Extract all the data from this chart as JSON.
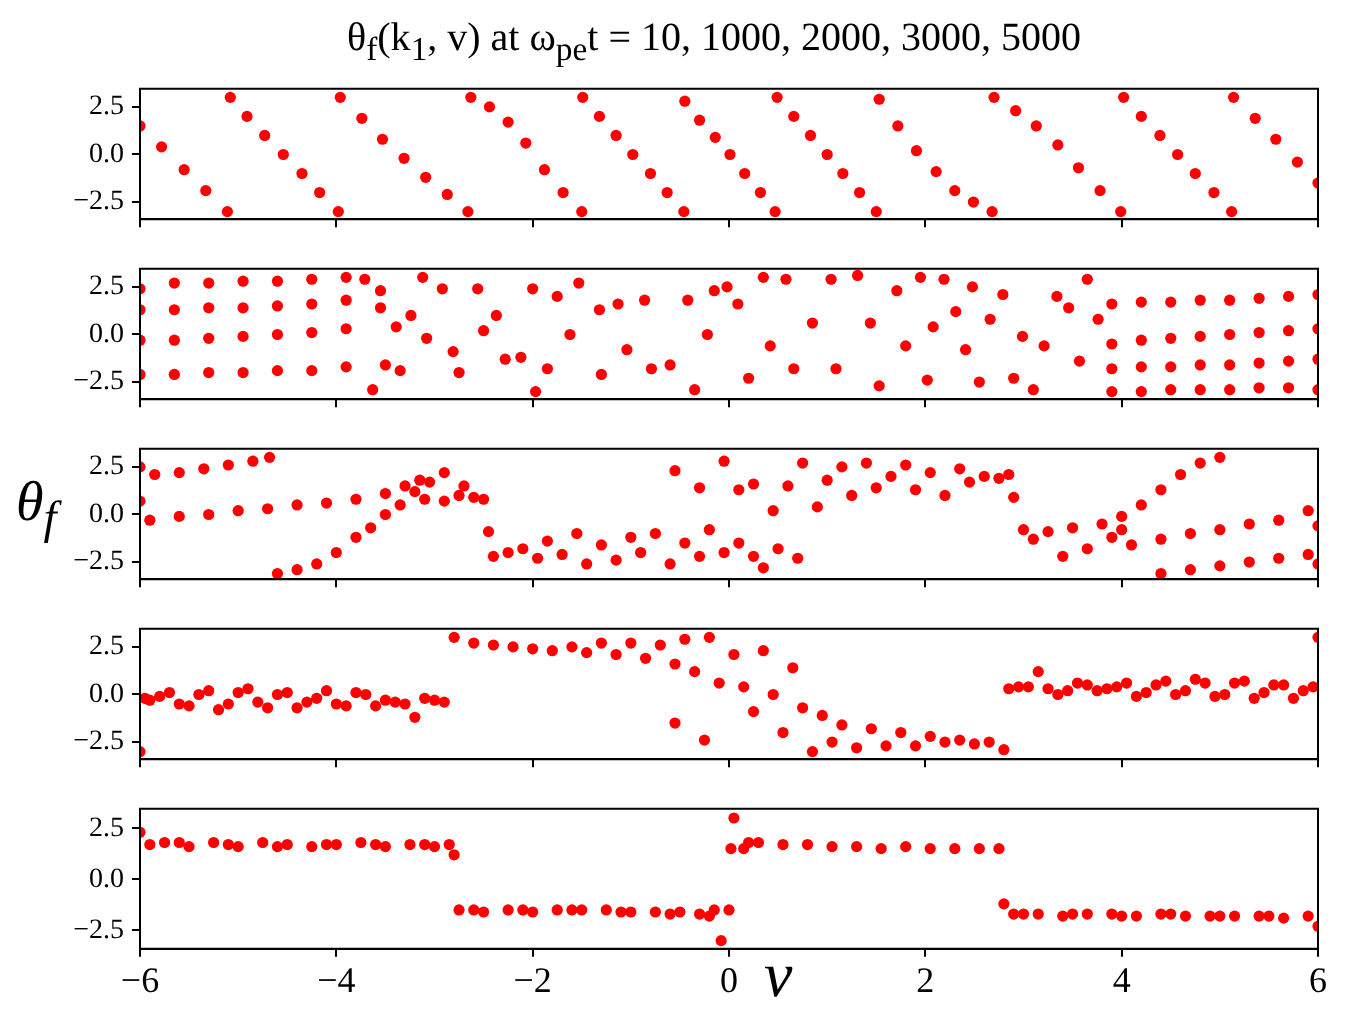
{
  "chart_data": [
    {
      "type": "scatter",
      "title": "θ$_{f}$(k$_{1}$, v) at ω$_{pe}$t = 10, 1000, 2000, 3000, 5000",
      "color": "#ff0000",
      "marker": "circle",
      "tick_labels": "y",
      "xlim": [
        -6,
        6
      ],
      "xticks": [
        {
          "value": -6,
          "label": null
        },
        {
          "value": -4,
          "label": null
        },
        {
          "value": -2,
          "label": null
        },
        {
          "value": 0,
          "label": null
        },
        {
          "value": 2,
          "label": null
        },
        {
          "value": 4,
          "label": null
        },
        {
          "value": 6,
          "label": null
        }
      ],
      "ylim": [
        -3.4,
        3.45
      ],
      "yticks": [
        {
          "value": -2.5,
          "label": "−2.5"
        },
        {
          "value": 0,
          "label": "0.0"
        },
        {
          "value": 2.5,
          "label": "2.5"
        }
      ],
      "x": [
        -6,
        -5.78,
        -5.55,
        -5.33,
        -5.11,
        -5.08,
        -4.91,
        -4.73,
        -4.54,
        -4.35,
        -4.17,
        -3.98,
        -3.96,
        -3.74,
        -3.53,
        -3.31,
        -3.09,
        -2.87,
        -2.66,
        -2.63,
        -2.44,
        -2.25,
        -2.07,
        -1.88,
        -1.69,
        -1.5,
        -1.49,
        -1.32,
        -1.15,
        -0.98,
        -0.8,
        -0.63,
        -0.46,
        -0.45,
        -0.3,
        -0.14,
        0.01,
        0.16,
        0.32,
        0.47,
        0.49,
        0.66,
        0.83,
        1,
        1.16,
        1.33,
        1.5,
        1.53,
        1.72,
        1.91,
        2.11,
        2.3,
        2.49,
        2.68,
        2.7,
        2.92,
        3.13,
        3.35,
        3.56,
        3.78,
        3.99,
        4.02,
        4.2,
        4.39,
        4.57,
        4.75,
        4.94,
        5.12,
        5.14,
        5.36,
        5.57,
        5.79,
        6
      ],
      "values": [
        1.5,
        0.4,
        -0.8,
        -1.9,
        -3,
        3,
        2,
        1,
        0,
        -1,
        -2,
        -3,
        3,
        1.9,
        0.8,
        -0.2,
        -1.2,
        -2.1,
        -3,
        3,
        2.5,
        1.7,
        0.6,
        -0.8,
        -2,
        -3,
        3,
        2,
        1,
        0,
        -1,
        -2,
        -3,
        2.8,
        1.8,
        0.9,
        0,
        -1,
        -2,
        -3,
        3,
        2,
        1,
        0,
        -1,
        -2,
        -3,
        2.9,
        1.5,
        0.2,
        -0.9,
        -1.9,
        -2.5,
        -3,
        3,
        2.3,
        1.5,
        0.5,
        -0.7,
        -1.9,
        -3,
        3,
        2,
        1,
        0,
        -1,
        -2,
        -3,
        3,
        1.9,
        0.8,
        -0.4,
        -1.5
      ]
    },
    {
      "type": "scatter",
      "color": "#ff0000",
      "marker": "circle",
      "tick_labels": "y",
      "xlim": [
        -6,
        6
      ],
      "xticks": [
        {
          "value": -6,
          "label": null
        },
        {
          "value": -4,
          "label": null
        },
        {
          "value": -2,
          "label": null
        },
        {
          "value": 0,
          "label": null
        },
        {
          "value": 2,
          "label": null
        },
        {
          "value": 4,
          "label": null
        },
        {
          "value": 6,
          "label": null
        }
      ],
      "ylim": [
        -3.4,
        3.45
      ],
      "yticks": [
        {
          "value": -2.5,
          "label": "−2.5"
        },
        {
          "value": 0,
          "label": "0.0"
        },
        {
          "value": 2.5,
          "label": "2.5"
        }
      ],
      "x": [
        -6,
        -5.65,
        -5.3,
        -4.95,
        -4.6,
        -4.25,
        -3.9,
        -6,
        -5.65,
        -5.3,
        -4.95,
        -4.6,
        -4.25,
        -3.9,
        -6,
        -5.65,
        -5.3,
        -4.95,
        -4.6,
        -4.25,
        -3.9,
        -6,
        -5.65,
        -5.3,
        -4.95,
        -4.6,
        -4.25,
        -3.9,
        -3.71,
        -3.55,
        -3.55,
        -3.39,
        -3.24,
        -3.12,
        -3.08,
        -2.92,
        -2.81,
        -2.75,
        -2.56,
        -2.5,
        -2.37,
        -2.28,
        -2.12,
        -2,
        -1.97,
        -1.85,
        -1.75,
        -1.62,
        -1.53,
        -1.32,
        -1.3,
        -1.13,
        -1.04,
        -0.86,
        -0.79,
        -0.6,
        -0.42,
        -0.35,
        -0.22,
        -0.15,
        -0.02,
        0.09,
        0.2,
        0.35,
        0.42,
        0.58,
        0.66,
        0.85,
        1.04,
        1.09,
        1.31,
        1.44,
        1.53,
        1.71,
        1.8,
        1.95,
        2.02,
        2.08,
        2.19,
        2.31,
        2.41,
        2.48,
        2.55,
        2.66,
        2.79,
        2.9,
        2.99,
        3.1,
        3.21,
        3.34,
        3.46,
        3.57,
        3.65,
        3.76,
        -3.63,
        -3.5,
        -3.35,
        3.9,
        4.2,
        4.5,
        4.8,
        5.1,
        5.4,
        5.7,
        6,
        3.9,
        4.2,
        4.5,
        4.8,
        5.1,
        5.4,
        5.7,
        6,
        3.9,
        4.2,
        4.5,
        4.8,
        5.1,
        5.4,
        5.7,
        6,
        3.9,
        4.2,
        4.5,
        4.8,
        5.1,
        5.4,
        5.7,
        6
      ],
      "values": [
        2.4,
        2.7,
        2.7,
        2.8,
        2.8,
        2.9,
        3,
        1.3,
        1.3,
        1.4,
        1.4,
        1.5,
        1.6,
        1.8,
        -0.3,
        -0.3,
        -0.2,
        -0.1,
        0,
        0.1,
        0.3,
        -2.1,
        -2.1,
        -2,
        -2,
        -1.9,
        -1.9,
        -1.7,
        2.9,
        2.3,
        1.4,
        0.4,
        1,
        3,
        -0.2,
        2.4,
        -0.9,
        -2,
        2.4,
        0.2,
        1,
        -1.3,
        -1.2,
        2.4,
        -3,
        -1.8,
        2,
        0,
        2.7,
        1.3,
        -2.1,
        1.6,
        -0.8,
        1.8,
        -1.8,
        -1.6,
        1.8,
        -2.9,
        0,
        2.3,
        2.5,
        1.6,
        -2.3,
        3,
        -0.6,
        2.9,
        -1.8,
        0.6,
        2.9,
        -1.8,
        3.1,
        0.6,
        -2.7,
        2.3,
        -0.6,
        3,
        -2.4,
        0.4,
        2.9,
        1.2,
        -0.8,
        2.5,
        -2.5,
        0.8,
        2.1,
        -2.3,
        -0.1,
        -2.9,
        -0.6,
        2,
        1.4,
        -1.4,
        2.9,
        0.8,
        -2.9,
        -1.6,
        -1.9,
        1.6,
        1.7,
        1.7,
        1.8,
        1.8,
        1.9,
        2,
        2.1,
        -0.5,
        -0.3,
        -0.2,
        -0.1,
        0,
        0.1,
        0.2,
        0.3,
        -1.8,
        -1.7,
        -1.7,
        -1.6,
        -1.6,
        -1.5,
        -1.4,
        -1.3,
        -3,
        -3,
        -2.9,
        -2.9,
        -2.9,
        -2.8,
        -2.8,
        -2.9
      ]
    },
    {
      "type": "scatter",
      "ylabel": "θ$_{f}$",
      "color": "#ff0000",
      "marker": "circle",
      "tick_labels": "y",
      "xlim": [
        -6,
        6
      ],
      "xticks": [
        {
          "value": -6,
          "label": null
        },
        {
          "value": -4,
          "label": null
        },
        {
          "value": -2,
          "label": null
        },
        {
          "value": 0,
          "label": null
        },
        {
          "value": 2,
          "label": null
        },
        {
          "value": 4,
          "label": null
        },
        {
          "value": 6,
          "label": null
        }
      ],
      "ylim": [
        -3.4,
        3.45
      ],
      "yticks": [
        {
          "value": -2.5,
          "label": "−2.5"
        },
        {
          "value": 0,
          "label": "0.0"
        },
        {
          "value": 2.5,
          "label": "2.5"
        }
      ],
      "x": [
        -6,
        -5.85,
        -5.6,
        -5.35,
        -5.1,
        -4.85,
        -4.68,
        -6,
        -5.9,
        -5.6,
        -5.3,
        -5,
        -4.7,
        -4.4,
        -4.1,
        -3.8,
        -3.5,
        -3.3,
        -3.15,
        -4.6,
        -4.4,
        -4.2,
        -4,
        -3.8,
        -3.65,
        -3.5,
        -3.35,
        -3.2,
        -3.05,
        -2.9,
        -3.1,
        -2.9,
        -2.75,
        -2.7,
        -2.6,
        -2.5,
        -2.45,
        -2.4,
        -2.25,
        -2.1,
        -1.95,
        -1.85,
        -1.7,
        -1.55,
        -1.45,
        -1.3,
        -1.15,
        -1,
        -0.9,
        -0.75,
        -0.6,
        -0.45,
        -0.3,
        -0.2,
        -0.05,
        0.1,
        0.25,
        0.35,
        0.5,
        0.7,
        -0.55,
        -0.3,
        -0.05,
        0.1,
        0.25,
        0.45,
        0.6,
        0.75,
        0.9,
        1,
        1.15,
        1.25,
        1.4,
        1.5,
        1.65,
        1.8,
        1.9,
        2.05,
        2.2,
        2.35,
        2.45,
        2.6,
        2.75,
        2.85,
        2.9,
        3,
        3.1,
        3.25,
        3.4,
        3.5,
        3.65,
        3.8,
        3.9,
        4,
        4,
        4.2,
        4.4,
        4.6,
        4.8,
        5,
        4.1,
        4.4,
        4.7,
        5,
        5.3,
        5.6,
        5.9,
        6,
        4.4,
        4.7,
        5,
        5.3,
        5.6,
        5.9,
        6
      ],
      "values": [
        2.5,
        2.1,
        2.2,
        2.4,
        2.6,
        2.8,
        3,
        0.7,
        -0.3,
        -0.1,
        0,
        0.2,
        0.3,
        0.5,
        0.6,
        0.8,
        1.1,
        1.5,
        1.8,
        -3.1,
        -2.9,
        -2.6,
        -2,
        -1.2,
        -0.7,
        0,
        0.5,
        1.2,
        1.7,
        2.2,
        0.8,
        0.7,
        1,
        1.5,
        0.9,
        0.8,
        -0.9,
        -2.2,
        -2,
        -1.8,
        -2.3,
        -1.4,
        -2.1,
        -1,
        -2.6,
        -1.6,
        -2.4,
        -1.2,
        -2,
        -1,
        -2.6,
        -1.5,
        -2.2,
        -0.8,
        -2,
        -1.5,
        -2.2,
        -2.8,
        -1.8,
        -2.3,
        2.3,
        1.4,
        2.8,
        1.3,
        1.6,
        0.2,
        1.5,
        2.7,
        0.4,
        1.8,
        2.5,
        1,
        2.7,
        1.4,
        2,
        2.6,
        1.3,
        2.2,
        1,
        2.4,
        1.7,
        2,
        1.9,
        2.1,
        0.9,
        -0.8,
        -1.3,
        -0.9,
        -2.2,
        -0.7,
        -1.8,
        -0.5,
        -1.2,
        -0.8,
        -0.1,
        0.5,
        1.3,
        2.1,
        2.7,
        3,
        -1.6,
        -1.3,
        -1,
        -0.8,
        -0.5,
        -0.3,
        0.2,
        -0.6,
        -3.1,
        -2.9,
        -2.7,
        -2.5,
        -2.3,
        -2.1,
        -2.6
      ]
    },
    {
      "type": "scatter",
      "color": "#ff0000",
      "marker": "circle",
      "tick_labels": "y",
      "xlim": [
        -6,
        6
      ],
      "xticks": [
        {
          "value": -6,
          "label": null
        },
        {
          "value": -4,
          "label": null
        },
        {
          "value": -2,
          "label": null
        },
        {
          "value": 0,
          "label": null
        },
        {
          "value": 2,
          "label": null
        },
        {
          "value": 4,
          "label": null
        },
        {
          "value": 6,
          "label": null
        }
      ],
      "ylim": [
        -3.4,
        3.45
      ],
      "yticks": [
        {
          "value": -2.5,
          "label": "−2.5"
        },
        {
          "value": 0,
          "label": "0.0"
        },
        {
          "value": 2.5,
          "label": "2.5"
        }
      ],
      "x": [
        -5.9,
        -5.7,
        -5.5,
        -5.3,
        -5.1,
        -4.9,
        -4.7,
        -4.5,
        -4.3,
        -4.1,
        -3.9,
        -3.7,
        -3.5,
        -3.3,
        -3.1,
        -5.8,
        -5.6,
        -5.4,
        -5.2,
        -5,
        -4.8,
        -4.6,
        -4.4,
        -4.2,
        -4,
        -3.8,
        -3.6,
        -3.4,
        -3.2,
        -6,
        -5.95,
        -3,
        -2.9,
        -2.8,
        -2.6,
        -2.4,
        -2.2,
        -2,
        -1.8,
        -1.6,
        -1.45,
        -1.3,
        -1.15,
        -1,
        -0.85,
        -0.7,
        -0.55,
        -0.45,
        -0.35,
        -0.2,
        -0.1,
        0.05,
        0.15,
        -0.55,
        -0.25,
        0.25,
        0.35,
        0.45,
        0.55,
        0.65,
        0.75,
        0.85,
        0.95,
        1.05,
        1.15,
        1.3,
        1.45,
        1.6,
        1.75,
        1.9,
        2.05,
        2.2,
        2.35,
        2.5,
        2.65,
        2.8,
        2.85,
        3.05,
        3.25,
        3.45,
        3.65,
        3.85,
        4.05,
        4.25,
        4.45,
        4.65,
        4.85,
        5.05,
        5.25,
        5.45,
        5.65,
        5.85,
        2.95,
        3.15,
        3.35,
        3.55,
        3.75,
        3.95,
        4.15,
        4.35,
        4.55,
        4.75,
        4.95,
        5.15,
        5.35,
        5.55,
        5.75,
        5.95,
        6
      ],
      "values": [
        -0.3,
        0.1,
        -0.6,
        0.2,
        -0.5,
        0.3,
        -0.7,
        0.1,
        -0.4,
        0.2,
        -0.6,
        0,
        -0.3,
        -0.5,
        -0.2,
        -0.1,
        -0.5,
        0,
        -0.8,
        0.1,
        -0.4,
        0,
        -0.7,
        -0.2,
        -0.5,
        0.1,
        -0.6,
        -0.4,
        -1.2,
        -3,
        -0.2,
        -0.3,
        -0.4,
        3,
        2.7,
        2.6,
        2.5,
        2.4,
        2.3,
        2.5,
        2.2,
        2.7,
        2.1,
        2.7,
        1.9,
        2.6,
        1.6,
        2.9,
        1.2,
        3,
        0.6,
        2.1,
        0.4,
        -1.5,
        -2.4,
        -0.9,
        2.3,
        0,
        -2,
        1.4,
        -0.7,
        -3,
        -1.1,
        -2.5,
        -1.6,
        -2.8,
        -1.8,
        -2.7,
        -2,
        -2.7,
        -2.2,
        -2.5,
        -2.4,
        -2.6,
        -2.5,
        -2.9,
        0.3,
        0.4,
        0.3,
        0.2,
        0.5,
        0.3,
        0.6,
        0.1,
        0.7,
        0.2,
        0.6,
        0,
        0.7,
        0.1,
        0.5,
        0.2,
        0.4,
        1.2,
        0,
        0.6,
        0.2,
        0.4,
        -0.1,
        0.5,
        0,
        0.8,
        -0.1,
        0.6,
        -0.2,
        0.5,
        -0.2,
        0.4,
        3
      ]
    },
    {
      "type": "scatter",
      "xlabel": "v",
      "color": "#ff0000",
      "marker": "circle",
      "xlim": [
        -6,
        6
      ],
      "xticks": [
        {
          "value": -6,
          "label": "−6"
        },
        {
          "value": -4,
          "label": "−4"
        },
        {
          "value": -2,
          "label": "−2"
        },
        {
          "value": 0,
          "label": "0"
        },
        {
          "value": 2,
          "label": "2"
        },
        {
          "value": 4,
          "label": "4"
        },
        {
          "value": 6,
          "label": "6"
        }
      ],
      "ylim": [
        -3.4,
        3.45
      ],
      "yticks": [
        {
          "value": -2.5,
          "label": "−2.5"
        },
        {
          "value": 0,
          "label": "0.0"
        },
        {
          "value": 2.5,
          "label": "2.5"
        }
      ],
      "x": [
        -6,
        -5.75,
        -5.5,
        -5.25,
        -5,
        -4.75,
        -4.5,
        -4.25,
        -4,
        -3.75,
        -3.5,
        -3.25,
        -3,
        -5.9,
        -5.6,
        -5.1,
        -4.6,
        -4.1,
        -3.6,
        -3.1,
        -2.85,
        -2.8,
        -2.75,
        -2.5,
        -2.25,
        -2,
        -1.75,
        -1.5,
        -1.25,
        -1,
        -0.75,
        -0.5,
        -0.3,
        -0.2,
        -2.6,
        -2.1,
        -1.6,
        -1.1,
        -0.6,
        -0.15,
        0,
        -0.08,
        0.02,
        0.05,
        0.15,
        0.2,
        0.3,
        0.55,
        0.8,
        1.05,
        1.3,
        1.55,
        1.8,
        2.05,
        2.3,
        2.55,
        2.75,
        2.8,
        2.9,
        3.15,
        3.4,
        3.65,
        3.9,
        4.15,
        4.4,
        4.65,
        4.9,
        5.15,
        5.4,
        5.65,
        5.9,
        6,
        3,
        3.5,
        4,
        4.5,
        5,
        5.5
      ],
      "values": [
        2.3,
        1.8,
        1.6,
        1.8,
        1.6,
        1.8,
        1.7,
        1.6,
        1.7,
        1.8,
        1.6,
        1.7,
        1.6,
        1.7,
        1.8,
        1.7,
        1.6,
        1.7,
        1.7,
        1.7,
        1.7,
        1.2,
        -1.5,
        -1.6,
        -1.5,
        -1.6,
        -1.5,
        -1.5,
        -1.5,
        -1.6,
        -1.6,
        -1.6,
        -1.7,
        -1.8,
        -1.5,
        -1.5,
        -1.5,
        -1.6,
        -1.7,
        -1.5,
        -1.5,
        -3,
        1.5,
        3,
        1.5,
        1.8,
        1.8,
        1.7,
        1.7,
        1.6,
        1.6,
        1.5,
        1.6,
        1.5,
        1.5,
        1.5,
        1.5,
        -1.2,
        -1.7,
        -1.7,
        -1.8,
        -1.7,
        -1.7,
        -1.8,
        -1.7,
        -1.8,
        -1.8,
        -1.8,
        -1.8,
        -1.9,
        -1.8,
        -2.3,
        -1.7,
        -1.7,
        -1.8,
        -1.7,
        -1.8,
        -1.8
      ]
    }
  ]
}
